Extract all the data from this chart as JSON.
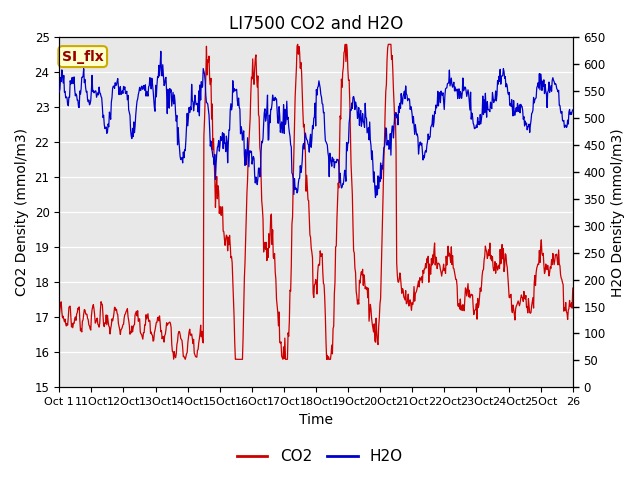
{
  "title": "LI7500 CO2 and H2O",
  "xlabel": "Time",
  "ylabel_left": "CO2 Density (mmol/m3)",
  "ylabel_right": "H2O Density (mmol/m3)",
  "ylim_left": [
    15.0,
    25.0
  ],
  "ylim_right": [
    0,
    650
  ],
  "yticks_left": [
    15.0,
    16.0,
    17.0,
    18.0,
    19.0,
    20.0,
    21.0,
    22.0,
    23.0,
    24.0,
    25.0
  ],
  "yticks_right": [
    0,
    50,
    100,
    150,
    200,
    250,
    300,
    350,
    400,
    450,
    500,
    550,
    600,
    650
  ],
  "xtick_labels": [
    "Oct 1",
    "11Oct",
    "12Oct",
    "13Oct",
    "14Oct",
    "15Oct",
    "16Oct",
    "17Oct",
    "18Oct",
    "19Oct",
    "20Oct",
    "21Oct",
    "22Oct",
    "23Oct",
    "24Oct",
    "25Oct",
    "26"
  ],
  "annotation_text": "SI_flx",
  "annotation_facecolor": "#ffffcc",
  "annotation_edgecolor": "#ccaa00",
  "annotation_textcolor": "#990000",
  "plot_bg_color": "#e8e8e8",
  "outer_bg_color": "#ffffff",
  "line_co2_color": "#cc0000",
  "line_h2o_color": "#0000cc",
  "legend_co2": "CO2",
  "legend_h2o": "H2O",
  "title_fontsize": 12,
  "axis_label_fontsize": 10,
  "tick_fontsize": 8.5,
  "legend_fontsize": 11,
  "linewidth": 0.9
}
